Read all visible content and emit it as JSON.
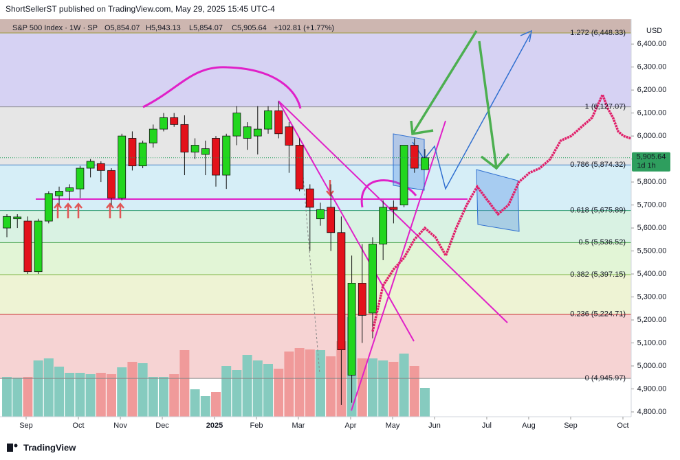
{
  "header": {
    "publisher": "ShortSellerST published on TradingView.com, May 29, 2025 15:45 UTC-4",
    "symbol": "S&P 500 Index · 1W · SP",
    "open": "O5,854.07",
    "high": "H5,943.13",
    "low": "L5,854.07",
    "close": "C5,905.64",
    "change": "+102.81 (+1.77%)",
    "currency": "USD",
    "footer": "TradingView"
  },
  "chart_data": {
    "type": "candlestick",
    "open": [
      5600,
      5640,
      5630,
      5410,
      5630,
      5740,
      5760,
      5770,
      5860,
      5880,
      5850,
      5730,
      5990,
      5870,
      5970,
      6030,
      6080,
      6050,
      5930,
      5920,
      5990,
      5830,
      6000,
      5990,
      6000,
      6030,
      6110,
      6040,
      5960,
      5770,
      5640,
      5690,
      5580,
      4960,
      5360,
      5230,
      5530,
      5690,
      5700,
      5960,
      5854.07
    ],
    "high": [
      5660,
      5660,
      5650,
      5640,
      5760,
      5780,
      5790,
      5870,
      5900,
      5890,
      5860,
      6010,
      6020,
      5980,
      6050,
      6100,
      6100,
      6090,
      5990,
      5980,
      6000,
      6010,
      6130,
      6060,
      6130,
      6130,
      6150,
      6060,
      5990,
      5790,
      5710,
      5790,
      5650,
      5480,
      5530,
      5560,
      5720,
      5720,
      5960,
      5990,
      5943.13
    ],
    "low": [
      5560,
      5600,
      5400,
      5400,
      5620,
      5700,
      5720,
      5730,
      5820,
      5800,
      5700,
      5720,
      5850,
      5860,
      5950,
      6020,
      6040,
      5830,
      5900,
      5830,
      5780,
      5770,
      5960,
      5940,
      5920,
      6010,
      5990,
      5840,
      5760,
      5500,
      5610,
      5500,
      4830,
      4840,
      5100,
      5120,
      5460,
      5620,
      5690,
      5840,
      5854.07
    ],
    "close": [
      5650,
      5648,
      5410,
      5630,
      5750,
      5760,
      5775,
      5860,
      5890,
      5850,
      5730,
      6000,
      5870,
      5970,
      6030,
      6080,
      6050,
      5930,
      5960,
      5945,
      5830,
      6000,
      6100,
      6040,
      6030,
      6110,
      6010,
      5960,
      5770,
      5690,
      5680,
      5580,
      5070,
      5360,
      5220,
      5530,
      5690,
      5680,
      5960,
      5860,
      5905.64
    ],
    "volume": [
      58,
      57,
      58,
      82,
      85,
      73,
      64,
      64,
      62,
      64,
      62,
      72,
      80,
      78,
      58,
      58,
      62,
      97,
      40,
      30,
      36,
      74,
      68,
      90,
      82,
      77,
      70,
      95,
      100,
      98,
      97,
      88,
      110,
      145,
      85,
      85,
      82,
      80,
      92,
      74,
      42
    ],
    "up_color": "#22d61e",
    "down_color": "#e3121b",
    "volume_up_color": "#86cbbf",
    "volume_down_color": "#f09a9a",
    "projection": {
      "color": "#e0206a",
      "x": [
        35,
        36,
        37,
        38,
        39,
        40,
        41,
        42,
        43,
        44,
        45,
        46,
        47,
        48,
        49,
        50,
        51,
        52,
        53,
        54,
        55,
        56,
        57,
        57.5,
        58,
        58.5,
        59,
        59.7
      ],
      "values": [
        5150,
        5350,
        5420,
        5470,
        5550,
        5600,
        5560,
        5480,
        5600,
        5700,
        5780,
        5720,
        5660,
        5700,
        5800,
        5840,
        5860,
        5900,
        5980,
        6000,
        6040,
        6080,
        6180,
        6120,
        6080,
        6020,
        6000,
        5990
      ]
    },
    "last_price": {
      "value": 5905.64,
      "label": "5,905.64"
    },
    "countdown": "1d 1h",
    "fib": [
      {
        "value": 6448.33,
        "label": "1.272 (6,448.33)",
        "color": "#9a9a3a",
        "fill": "#cdb6b0"
      },
      {
        "value": 6127.07,
        "label": "1 (6,127.07)",
        "color": "#888888",
        "fill": "#d6d2f3"
      },
      {
        "value": 5874.32,
        "label": "0.786 (5,874.32)",
        "color": "#4a86c5",
        "fill": "#e6e6e6"
      },
      {
        "value": 5675.89,
        "label": "0.618 (5,675.89)",
        "color": "#2d9b72",
        "fill": "#d6eef7"
      },
      {
        "value": 5536.52,
        "label": "0.5 (5,536.52)",
        "color": "#43a047",
        "fill": "#d9f2e3"
      },
      {
        "value": 5397.15,
        "label": "0.382 (5,397.15)",
        "color": "#7cb342",
        "fill": "#e2f5d6"
      },
      {
        "value": 5224.71,
        "label": "0.236 (5,224.71)",
        "color": "#c62828",
        "fill": "#eef3d4"
      },
      {
        "value": 4945.97,
        "label": "0 (4,945.97)",
        "color": "#888888",
        "fill": "#f6d3d3"
      }
    ],
    "xlim": [
      -0.66,
      59.74
    ],
    "xticks": [
      {
        "value": 1.84,
        "label": "Sep"
      },
      {
        "value": 6.84,
        "label": "Oct"
      },
      {
        "value": 10.86,
        "label": "Nov"
      },
      {
        "value": 14.87,
        "label": "Dec"
      },
      {
        "value": 19.87,
        "label": "2025"
      },
      {
        "value": 23.88,
        "label": "Feb"
      },
      {
        "value": 27.89,
        "label": "Mar"
      },
      {
        "value": 32.89,
        "label": "Apr"
      },
      {
        "value": 36.91,
        "label": "May"
      },
      {
        "value": 40.92,
        "label": "Jun"
      },
      {
        "value": 45.92,
        "label": "Jul"
      },
      {
        "value": 49.93,
        "label": "Aug"
      },
      {
        "value": 53.95,
        "label": "Sep"
      },
      {
        "value": 58.95,
        "label": "Oct"
      }
    ],
    "ylim": [
      4779,
      6508
    ],
    "yticks": [
      {
        "value": 4800,
        "label": "4,800.00"
      },
      {
        "value": 4900,
        "label": "4,900.00"
      },
      {
        "value": 5000,
        "label": "5,000.00"
      },
      {
        "value": 5100,
        "label": "5,100.00"
      },
      {
        "value": 5200,
        "label": "5,200.00"
      },
      {
        "value": 5300,
        "label": "5,300.00"
      },
      {
        "value": 5400,
        "label": "5,400.00"
      },
      {
        "value": 5500,
        "label": "5,500.00"
      },
      {
        "value": 5600,
        "label": "5,600.00"
      },
      {
        "value": 5700,
        "label": "5,700.00"
      },
      {
        "value": 5800,
        "label": "5,800.00"
      },
      {
        "value": 5900,
        "label": "5,900.00"
      },
      {
        "value": 6000,
        "label": "6,000.00"
      },
      {
        "value": 6100,
        "label": "6,100.00"
      },
      {
        "value": 6200,
        "label": "6,200.00"
      },
      {
        "value": 6300,
        "label": "6,300.00"
      },
      {
        "value": 6400,
        "label": "6,400.00"
      }
    ]
  }
}
